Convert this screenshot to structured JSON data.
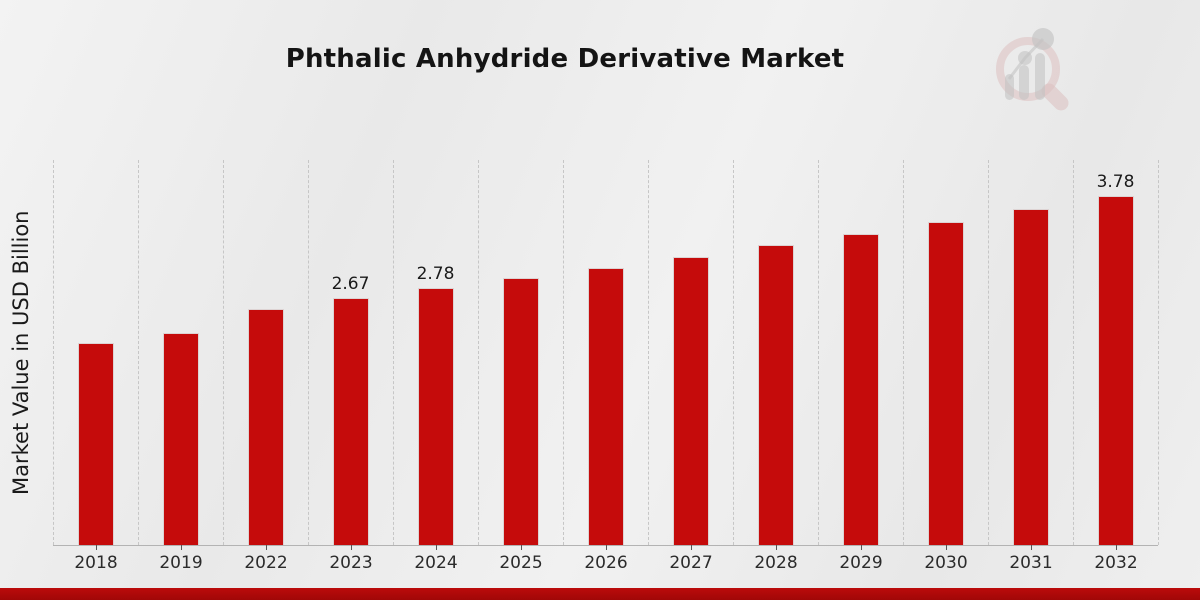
{
  "title": "Phthalic Anhydride Derivative Market",
  "colors": {
    "bar": "#c50b0b",
    "accent_band": "#b40a0a",
    "background": "#ececec",
    "gridline": "#c6c6c6",
    "axis_line": "#b3b3b3",
    "text": "#1a1a1a"
  },
  "logo": {
    "name": "magnifier-bar-chart-watermark"
  },
  "chart_data": {
    "type": "bar",
    "title": "Phthalic Anhydride Derivative Market",
    "xlabel": "",
    "ylabel": "Market Value in USD Billion",
    "categories": [
      "2018",
      "2019",
      "2022",
      "2023",
      "2024",
      "2025",
      "2026",
      "2027",
      "2028",
      "2029",
      "2030",
      "2031",
      "2032"
    ],
    "values": [
      2.19,
      2.3,
      2.56,
      2.67,
      2.78,
      2.89,
      3.0,
      3.12,
      3.25,
      3.37,
      3.5,
      3.64,
      3.78
    ],
    "labeled_points": {
      "2023": "2.67",
      "2024": "2.78",
      "2032": "3.78"
    },
    "ylim": [
      0,
      4.17
    ],
    "grid": "vertical-dashed",
    "legend": "none",
    "bar_color": "#c50b0b"
  }
}
